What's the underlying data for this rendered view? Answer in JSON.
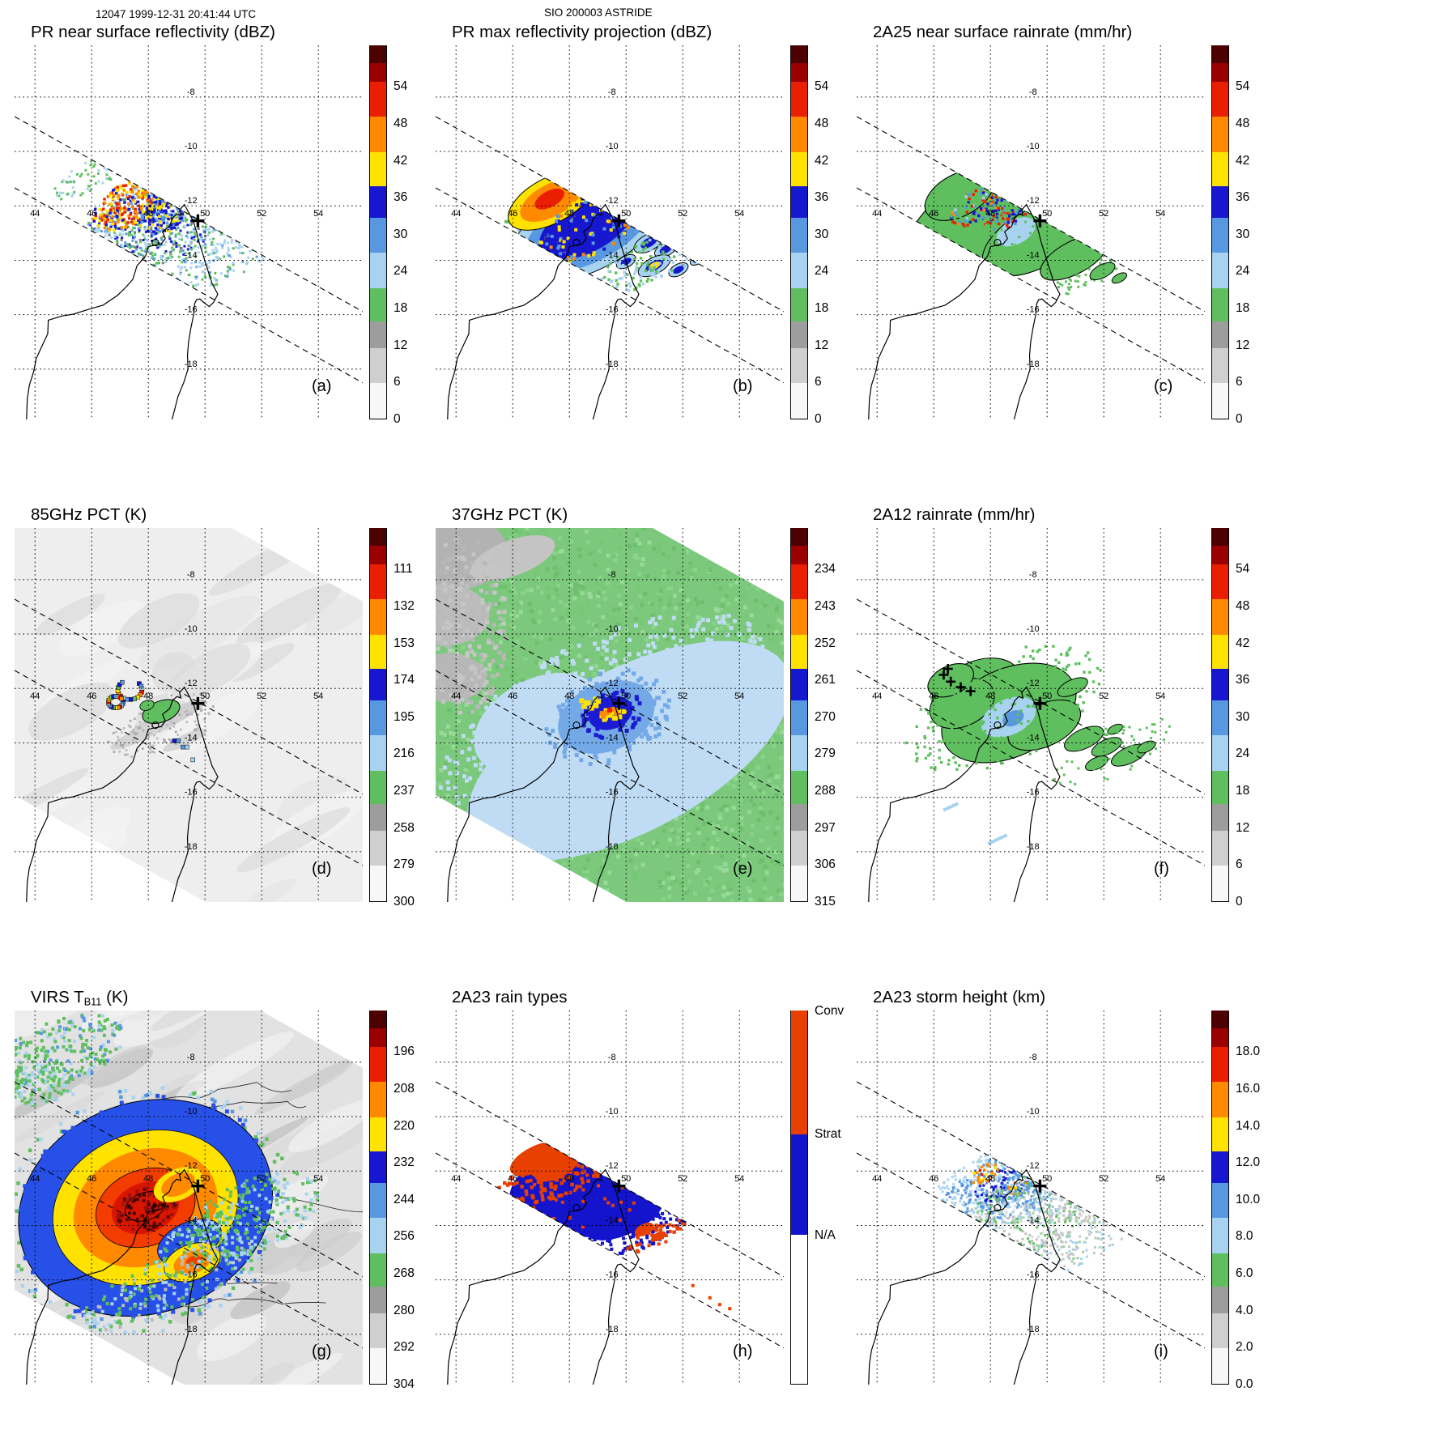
{
  "header": {
    "left": "12047 1999-12-31 20:41:44 UTC",
    "center": "SIO 200003 ASTRIDE"
  },
  "colors": {
    "white": "#f7f7f7",
    "lgray": "#cfcfcf",
    "mgray": "#a0a0a0",
    "dgray": "#7a7a7a",
    "green": "#5fbf5f",
    "lblue": "#a8d3f0",
    "mblue": "#5898e0",
    "dblue": "#1617cf",
    "yellow": "#ffe200",
    "orange": "#ff8a00",
    "red": "#ea1e00",
    "dred": "#9a0000",
    "maroon": "#4d0000",
    "conv": "#e84000",
    "strat": "#1414cc"
  },
  "chart_data": {
    "type": "heatmap",
    "description": "3x3 grid of TRMM satellite overpass maps of tropical cyclone Astride near northern Madagascar; each panel is a lon/lat map with its own colorbar",
    "orbit_header": "12047 1999-12-31 20:41:44 UTC",
    "storm_header": "SIO 200003 ASTRIDE",
    "axes": {
      "lon_ticks": [
        44,
        46,
        48,
        50,
        52,
        54
      ],
      "lat_ticks": [
        -8,
        -10,
        -12,
        -14,
        -16,
        -18
      ],
      "lon_range": [
        43.3,
        55.6
      ],
      "lat_range": [
        -19.8,
        -6.1
      ]
    },
    "storm_center": {
      "lon": 49.75,
      "lat": -12.55
    },
    "colorbar_stops": {
      "rainbow": [
        {
          "f0": 0.0,
          "f1": 0.095,
          "color": "#f7f7f7"
        },
        {
          "f0": 0.095,
          "f1": 0.19,
          "color": "#cfcfcf"
        },
        {
          "f0": 0.19,
          "f1": 0.26,
          "color": "#9d9d9d"
        },
        {
          "f0": 0.26,
          "f1": 0.35,
          "color": "#5fbf5f"
        },
        {
          "f0": 0.35,
          "f1": 0.445,
          "color": "#a8d3f0"
        },
        {
          "f0": 0.445,
          "f1": 0.54,
          "color": "#5898e0"
        },
        {
          "f0": 0.54,
          "f1": 0.625,
          "color": "#1617cf"
        },
        {
          "f0": 0.625,
          "f1": 0.715,
          "color": "#ffe200"
        },
        {
          "f0": 0.715,
          "f1": 0.81,
          "color": "#ff8a00"
        },
        {
          "f0": 0.81,
          "f1": 0.905,
          "color": "#ea1e00"
        },
        {
          "f0": 0.905,
          "f1": 0.955,
          "color": "#9a0000"
        },
        {
          "f0": 0.955,
          "f1": 1.0,
          "color": "#4d0000"
        }
      ],
      "raintype": [
        {
          "f0": 0.0,
          "f1": 0.4,
          "color": "#ffffff"
        },
        {
          "f0": 0.4,
          "f1": 0.67,
          "color": "#1414cc"
        },
        {
          "f0": 0.67,
          "f1": 1.0,
          "color": "#e84000"
        }
      ]
    },
    "panels": [
      {
        "id": "a",
        "title_pre": "PR near surface reflectivity (dBZ)",
        "title_sub": "",
        "title_post": "",
        "letter": "(a)",
        "style": "pr_ns",
        "cbar": "rainbow",
        "units": "dBZ",
        "ticks": [
          "54",
          "48",
          "42",
          "36",
          "30",
          "24",
          "18",
          "12",
          "6",
          "0"
        ]
      },
      {
        "id": "b",
        "title_pre": "PR max reflectivity projection (dBZ)",
        "title_sub": "",
        "title_post": "",
        "letter": "(b)",
        "style": "pr_max",
        "cbar": "rainbow",
        "units": "dBZ",
        "ticks": [
          "54",
          "48",
          "42",
          "36",
          "30",
          "24",
          "18",
          "12",
          "6",
          "0"
        ]
      },
      {
        "id": "c",
        "title_pre": "2A25 near surface rainrate (mm/hr)",
        "title_sub": "",
        "title_post": "",
        "letter": "(c)",
        "style": "rr2a25",
        "cbar": "rainbow",
        "units": "mm/hr",
        "ticks": [
          "54",
          "48",
          "42",
          "36",
          "30",
          "24",
          "18",
          "12",
          "6",
          "0"
        ]
      },
      {
        "id": "d",
        "title_pre": "85GHz PCT (K)",
        "title_sub": "",
        "title_post": "",
        "letter": "(d)",
        "style": "pct85",
        "cbar": "rainbow",
        "units": "K",
        "ticks": [
          "111",
          "132",
          "153",
          "174",
          "195",
          "216",
          "237",
          "258",
          "279",
          "300"
        ]
      },
      {
        "id": "e",
        "title_pre": "37GHz PCT (K)",
        "title_sub": "",
        "title_post": "",
        "letter": "(e)",
        "style": "pct37",
        "cbar": "rainbow",
        "units": "K",
        "ticks": [
          "234",
          "243",
          "252",
          "261",
          "270",
          "279",
          "288",
          "297",
          "306",
          "315"
        ]
      },
      {
        "id": "f",
        "title_pre": "2A12 rainrate (mm/hr)",
        "title_sub": "",
        "title_post": "",
        "letter": "(f)",
        "style": "rr2a12",
        "cbar": "rainbow",
        "units": "mm/hr",
        "ticks": [
          "54",
          "48",
          "42",
          "36",
          "30",
          "24",
          "18",
          "12",
          "6",
          "0"
        ]
      },
      {
        "id": "g",
        "title_pre": "VIRS T",
        "title_sub": "B11",
        "title_post": " (K)",
        "letter": "(g)",
        "style": "virs",
        "cbar": "rainbow",
        "units": "K",
        "ticks": [
          "196",
          "208",
          "220",
          "232",
          "244",
          "256",
          "268",
          "280",
          "292",
          "304"
        ]
      },
      {
        "id": "h",
        "title_pre": "2A23 rain types",
        "title_sub": "",
        "title_post": "",
        "letter": "(h)",
        "style": "raintype",
        "cbar": "raintype",
        "units": "",
        "cbar_labels": [
          {
            "text": "Conv",
            "f": 1.0
          },
          {
            "text": "Strat",
            "f": 0.67
          },
          {
            "text": "N/A",
            "f": 0.4
          }
        ]
      },
      {
        "id": "i",
        "title_pre": "2A23 storm height (km)",
        "title_sub": "",
        "title_post": "",
        "letter": "(i)",
        "style": "height",
        "cbar": "rainbow",
        "units": "km",
        "ticks": [
          "18.0",
          "16.0",
          "14.0",
          "12.0",
          "10.0",
          "8.0",
          "6.0",
          "4.0",
          "2.0",
          "0.0"
        ]
      }
    ]
  }
}
